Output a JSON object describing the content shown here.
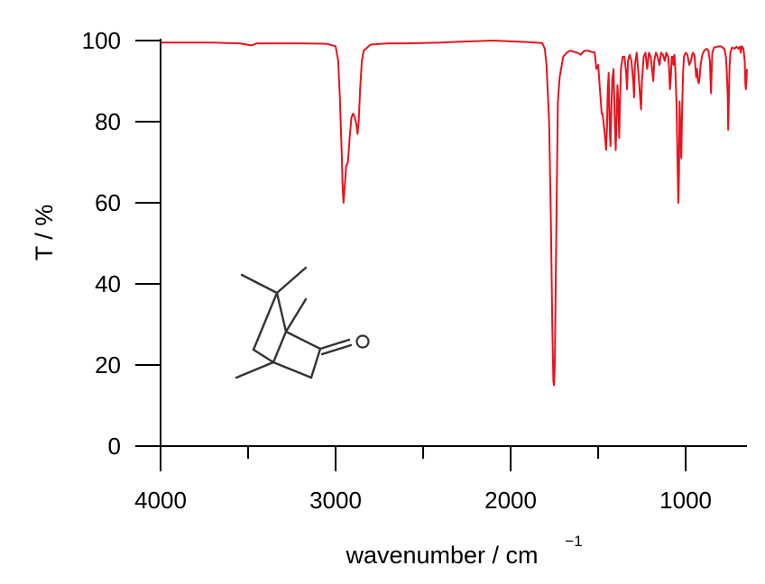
{
  "chart_data": {
    "type": "line",
    "xlabel": "wavenumber / cm",
    "xlabel_superscript": "−1",
    "ylabel": "T / %",
    "xlim": [
      4000,
      650
    ],
    "ylim": [
      0,
      100
    ],
    "x_ticks": [
      4000,
      3000,
      2000,
      1000
    ],
    "x_tick_labels": [
      "4000",
      "3000",
      "2000",
      "1000"
    ],
    "x_minor_ticks": [
      3500,
      2500,
      1500
    ],
    "y_ticks": [
      0,
      20,
      40,
      60,
      80,
      100
    ],
    "y_tick_labels": [
      "0",
      "20",
      "40",
      "60",
      "80",
      "100"
    ],
    "grid": false,
    "series": [
      {
        "color": "#e8131d",
        "points": [
          [
            4000,
            99.5
          ],
          [
            3700,
            99.5
          ],
          [
            3550,
            99.3
          ],
          [
            3480,
            98.8
          ],
          [
            3450,
            99.3
          ],
          [
            3200,
            99.3
          ],
          [
            3050,
            99.2
          ],
          [
            3000,
            98.6
          ],
          [
            2985,
            95
          ],
          [
            2975,
            85
          ],
          [
            2965,
            72
          ],
          [
            2960,
            64
          ],
          [
            2955,
            60
          ],
          [
            2948,
            64
          ],
          [
            2940,
            69
          ],
          [
            2930,
            70
          ],
          [
            2920,
            76
          ],
          [
            2910,
            81
          ],
          [
            2900,
            82
          ],
          [
            2890,
            81
          ],
          [
            2880,
            79
          ],
          [
            2875,
            77
          ],
          [
            2868,
            80
          ],
          [
            2860,
            88
          ],
          [
            2850,
            95
          ],
          [
            2840,
            97.5
          ],
          [
            2800,
            99
          ],
          [
            2700,
            99.3
          ],
          [
            2600,
            99.3
          ],
          [
            2400,
            99.5
          ],
          [
            2300,
            99.7
          ],
          [
            2100,
            100
          ],
          [
            2000,
            99.8
          ],
          [
            1900,
            99.6
          ],
          [
            1820,
            99.4
          ],
          [
            1805,
            98
          ],
          [
            1795,
            94
          ],
          [
            1780,
            80
          ],
          [
            1770,
            55
          ],
          [
            1762,
            30
          ],
          [
            1756,
            16
          ],
          [
            1752,
            15
          ],
          [
            1748,
            20
          ],
          [
            1740,
            50
          ],
          [
            1730,
            85
          ],
          [
            1720,
            91
          ],
          [
            1700,
            96
          ],
          [
            1680,
            97
          ],
          [
            1660,
            97.5
          ],
          [
            1620,
            97
          ],
          [
            1600,
            96.5
          ],
          [
            1580,
            97.5
          ],
          [
            1560,
            97.5
          ],
          [
            1520,
            97
          ],
          [
            1510,
            93
          ],
          [
            1500,
            94
          ],
          [
            1490,
            88
          ],
          [
            1480,
            82
          ],
          [
            1475,
            82
          ],
          [
            1470,
            80
          ],
          [
            1465,
            78
          ],
          [
            1460,
            76
          ],
          [
            1455,
            73
          ],
          [
            1450,
            78
          ],
          [
            1445,
            88
          ],
          [
            1440,
            92
          ],
          [
            1435,
            80
          ],
          [
            1430,
            74
          ],
          [
            1425,
            82
          ],
          [
            1420,
            90
          ],
          [
            1412,
            93
          ],
          [
            1405,
            80
          ],
          [
            1400,
            73
          ],
          [
            1395,
            80
          ],
          [
            1390,
            89
          ],
          [
            1385,
            85
          ],
          [
            1380,
            76
          ],
          [
            1375,
            85
          ],
          [
            1370,
            93
          ],
          [
            1360,
            96
          ],
          [
            1350,
            96
          ],
          [
            1340,
            92
          ],
          [
            1335,
            88
          ],
          [
            1330,
            95
          ],
          [
            1320,
            96.5
          ],
          [
            1310,
            95
          ],
          [
            1300,
            90
          ],
          [
            1295,
            86
          ],
          [
            1290,
            94
          ],
          [
            1280,
            97
          ],
          [
            1270,
            92
          ],
          [
            1260,
            86
          ],
          [
            1255,
            83
          ],
          [
            1250,
            90
          ],
          [
            1240,
            96
          ],
          [
            1230,
            97
          ],
          [
            1220,
            93
          ],
          [
            1215,
            95
          ],
          [
            1210,
            97
          ],
          [
            1200,
            96
          ],
          [
            1190,
            92
          ],
          [
            1185,
            90
          ],
          [
            1180,
            95
          ],
          [
            1170,
            97
          ],
          [
            1160,
            96
          ],
          [
            1150,
            94
          ],
          [
            1140,
            97
          ],
          [
            1130,
            96.5
          ],
          [
            1120,
            95
          ],
          [
            1110,
            97
          ],
          [
            1100,
            96
          ],
          [
            1095,
            93
          ],
          [
            1090,
            88
          ],
          [
            1085,
            91
          ],
          [
            1080,
            96
          ],
          [
            1075,
            96
          ],
          [
            1070,
            94
          ],
          [
            1065,
            96.5
          ],
          [
            1060,
            94
          ],
          [
            1052,
            84
          ],
          [
            1046,
            68
          ],
          [
            1042,
            60
          ],
          [
            1038,
            67
          ],
          [
            1035,
            85
          ],
          [
            1030,
            78
          ],
          [
            1025,
            71
          ],
          [
            1020,
            84
          ],
          [
            1015,
            92
          ],
          [
            1010,
            96
          ],
          [
            1000,
            97
          ],
          [
            990,
            96.5
          ],
          [
            980,
            94
          ],
          [
            970,
            95
          ],
          [
            960,
            97
          ],
          [
            950,
            96.5
          ],
          [
            940,
            91
          ],
          [
            935,
            93
          ],
          [
            930,
            90
          ],
          [
            925,
            89.5
          ],
          [
            920,
            91
          ],
          [
            915,
            94
          ],
          [
            905,
            96.5
          ],
          [
            895,
            97.5
          ],
          [
            880,
            98
          ],
          [
            870,
            97.5
          ],
          [
            862,
            95
          ],
          [
            858,
            90
          ],
          [
            855,
            87
          ],
          [
            852,
            92
          ],
          [
            848,
            97
          ],
          [
            838,
            98.3
          ],
          [
            820,
            98.5
          ],
          [
            800,
            98.6
          ],
          [
            780,
            98
          ],
          [
            770,
            96
          ],
          [
            765,
            92
          ],
          [
            760,
            86
          ],
          [
            757,
            78
          ],
          [
            754,
            84
          ],
          [
            750,
            93
          ],
          [
            745,
            97
          ],
          [
            735,
            98.3
          ],
          [
            720,
            98
          ],
          [
            710,
            98.5
          ],
          [
            700,
            98
          ],
          [
            690,
            98.5
          ],
          [
            685,
            97
          ],
          [
            680,
            98.6
          ],
          [
            670,
            98
          ],
          [
            663,
            95
          ],
          [
            659,
            89
          ],
          [
            656,
            88
          ],
          [
            653,
            90
          ],
          [
            650,
            93
          ]
        ]
      }
    ]
  }
}
